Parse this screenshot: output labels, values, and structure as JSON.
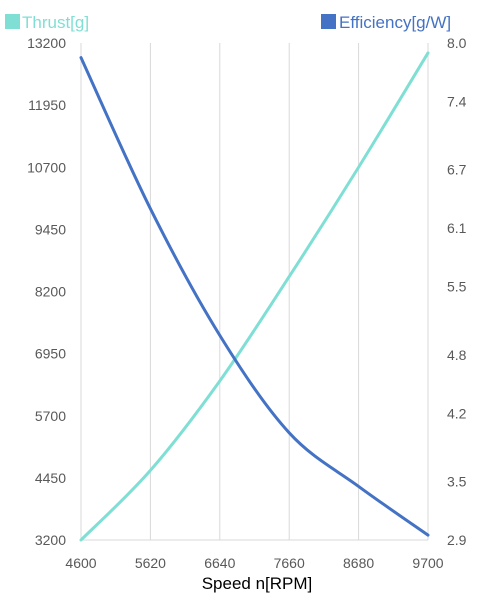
{
  "chart_data": {
    "type": "line",
    "xlabel": "Speed n[RPM]",
    "x_ticks": [
      4600,
      5620,
      6640,
      7660,
      8680,
      9700
    ],
    "xlim": [
      4600,
      9700
    ],
    "left_axis": {
      "ticks": [
        3200,
        4450,
        5700,
        6950,
        8200,
        9450,
        10700,
        11950,
        13200
      ],
      "ylim": [
        3200,
        13200
      ]
    },
    "right_axis": {
      "ticks": [
        2.9,
        3.5,
        4.2,
        4.8,
        5.5,
        6.1,
        6.7,
        7.4,
        8.0
      ],
      "ylim": [
        2.9,
        8.0
      ]
    },
    "grid": "vertical",
    "legend_position": "top",
    "series": [
      {
        "name": "Thrust[g]",
        "axis": "left",
        "color": "#7fdfd4",
        "x": [
          4600,
          5620,
          6640,
          7660,
          8680,
          9700
        ],
        "values": [
          3200,
          4600,
          6400,
          8500,
          10700,
          13000
        ]
      },
      {
        "name": "Efficiency[g/W]",
        "axis": "right",
        "color": "#4472c4",
        "x": [
          4600,
          5620,
          6640,
          7660,
          8680,
          9700
        ],
        "values": [
          7.85,
          6.3,
          5.0,
          4.0,
          3.45,
          2.95
        ]
      }
    ],
    "legend": [
      {
        "label": "Thrust[g]",
        "color": "#7fdfd4"
      },
      {
        "label": "Efficiency[g/W]",
        "color": "#4472c4"
      }
    ]
  }
}
